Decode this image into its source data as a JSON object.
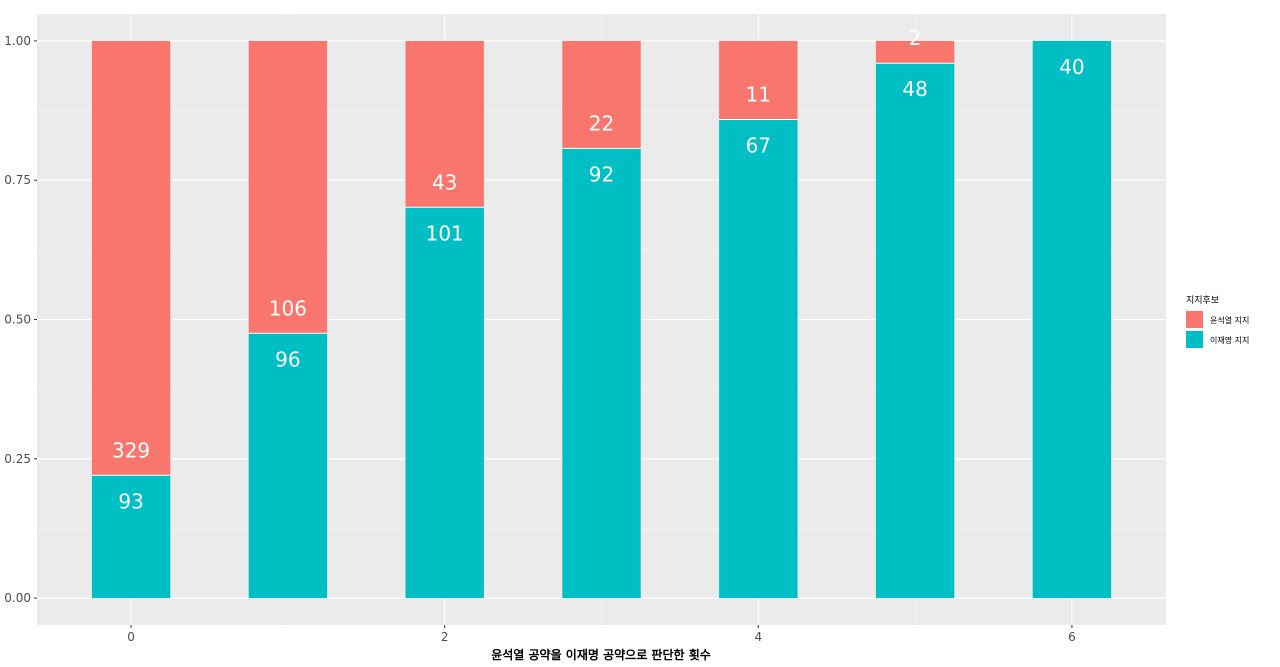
{
  "chart_data": {
    "type": "bar",
    "stacked": true,
    "normalized": true,
    "x": [
      0,
      1,
      2,
      3,
      4,
      5,
      6
    ],
    "xticks": [
      0,
      2,
      4,
      6
    ],
    "xlabel": "윤석열 공약을 이재명 공약으로 판단한 횟수",
    "ylabel": "",
    "ylim": [
      0,
      1
    ],
    "yticks": [
      0,
      0.25,
      0.5,
      0.75,
      1.0
    ],
    "ytick_labels": [
      "0.00",
      "0.25",
      "0.50",
      "0.75",
      "1.00"
    ],
    "series": [
      {
        "name": "윤석열 지지",
        "color": "#F8766D",
        "values": [
          329,
          106,
          43,
          22,
          11,
          2,
          0
        ]
      },
      {
        "name": "이재명 지지",
        "color": "#00BFC4",
        "values": [
          93,
          96,
          101,
          92,
          67,
          48,
          40
        ]
      }
    ],
    "legend": {
      "title": "지지후보",
      "position": "right"
    },
    "grid": true
  }
}
